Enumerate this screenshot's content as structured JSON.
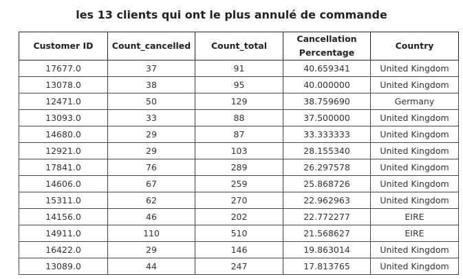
{
  "chart_data": {
    "type": "table",
    "title": "les 13 clients qui ont le plus annulé de commande",
    "columns": [
      "Customer ID",
      "Count_cancelled",
      "Count_total",
      "Cancellation Percentage",
      "Country"
    ],
    "rows": [
      [
        "17677.0",
        "37",
        "91",
        "40.659341",
        "United Kingdom"
      ],
      [
        "13078.0",
        "38",
        "95",
        "40.000000",
        "United Kingdom"
      ],
      [
        "12471.0",
        "50",
        "129",
        "38.759690",
        "Germany"
      ],
      [
        "13093.0",
        "33",
        "88",
        "37.500000",
        "United Kingdom"
      ],
      [
        "14680.0",
        "29",
        "87",
        "33.333333",
        "United Kingdom"
      ],
      [
        "12921.0",
        "29",
        "103",
        "28.155340",
        "United Kingdom"
      ],
      [
        "17841.0",
        "76",
        "289",
        "26.297578",
        "United Kingdom"
      ],
      [
        "14606.0",
        "67",
        "259",
        "25.868726",
        "United Kingdom"
      ],
      [
        "15311.0",
        "62",
        "270",
        "22.962963",
        "United Kingdom"
      ],
      [
        "14156.0",
        "46",
        "202",
        "22.772277",
        "EIRE"
      ],
      [
        "14911.0",
        "110",
        "510",
        "21.568627",
        "EIRE"
      ],
      [
        "16422.0",
        "29",
        "146",
        "19.863014",
        "United Kingdom"
      ],
      [
        "13089.0",
        "44",
        "247",
        "17.813765",
        "United Kingdom"
      ]
    ]
  }
}
